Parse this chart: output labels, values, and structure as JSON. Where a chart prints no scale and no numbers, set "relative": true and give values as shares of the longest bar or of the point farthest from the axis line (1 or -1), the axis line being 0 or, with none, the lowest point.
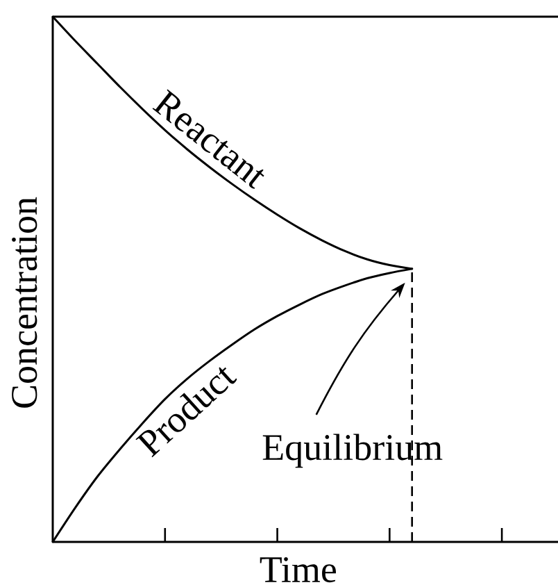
{
  "chart_data": {
    "type": "line",
    "xlabel": "Time",
    "ylabel": "Concentration",
    "relative": true,
    "categories": [
      null,
      null,
      null,
      null,
      null,
      null,
      null,
      null,
      null,
      null,
      null,
      null,
      null,
      null,
      null,
      null,
      null,
      null,
      null,
      null,
      null,
      null,
      null
    ],
    "series": [
      {
        "name": "Reactant",
        "color": "#000000",
        "values": [
          1,
          0.954,
          0.91,
          0.866,
          0.824,
          0.784,
          0.747,
          0.713,
          0.681,
          0.651,
          0.623,
          0.597,
          0.574,
          0.554,
          0.538,
          0.527,
          0.52,
          null,
          null,
          null,
          null,
          null,
          null
        ]
      },
      {
        "name": "Product",
        "color": "#000000",
        "values": [
          0,
          0.065,
          0.125,
          0.177,
          0.226,
          0.272,
          0.311,
          0.345,
          0.376,
          0.405,
          0.43,
          0.452,
          0.472,
          0.488,
          0.502,
          0.512,
          0.52,
          null,
          null,
          null,
          null,
          null,
          null
        ]
      }
    ],
    "annotations": [
      "Equilibrium"
    ]
  }
}
